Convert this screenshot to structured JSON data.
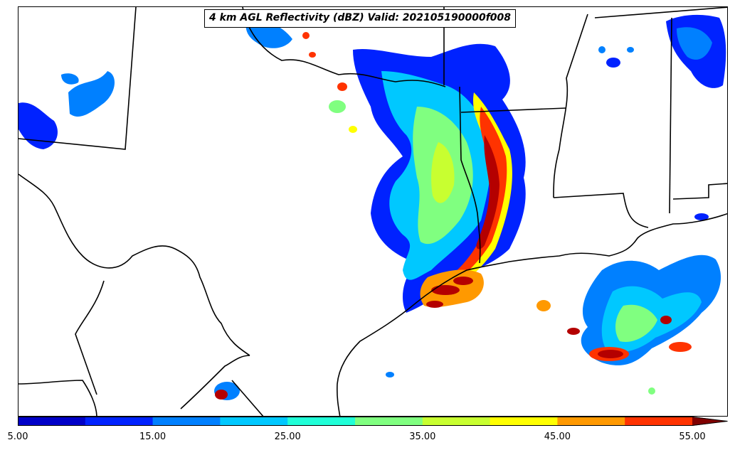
{
  "title": "4 km AGL Reflectivity (dBZ) Valid: 202105190000f008",
  "colorbar": {
    "min": 5,
    "max": 55,
    "extend": "max",
    "tick_labels": [
      "5.00",
      "15.00",
      "25.00",
      "35.00",
      "45.00",
      "55.00"
    ],
    "levels": [
      5,
      10,
      15,
      20,
      25,
      30,
      35,
      40,
      45,
      50,
      55
    ],
    "colors": [
      "#0000c8",
      "#0022ff",
      "#0080ff",
      "#00c8ff",
      "#20ffd8",
      "#80ff80",
      "#c8ff30",
      "#ffff00",
      "#ff9900",
      "#ff3300",
      "#b40000",
      "#800000"
    ]
  },
  "map": {
    "background": "#ffffff",
    "boundary_color": "#000000"
  }
}
